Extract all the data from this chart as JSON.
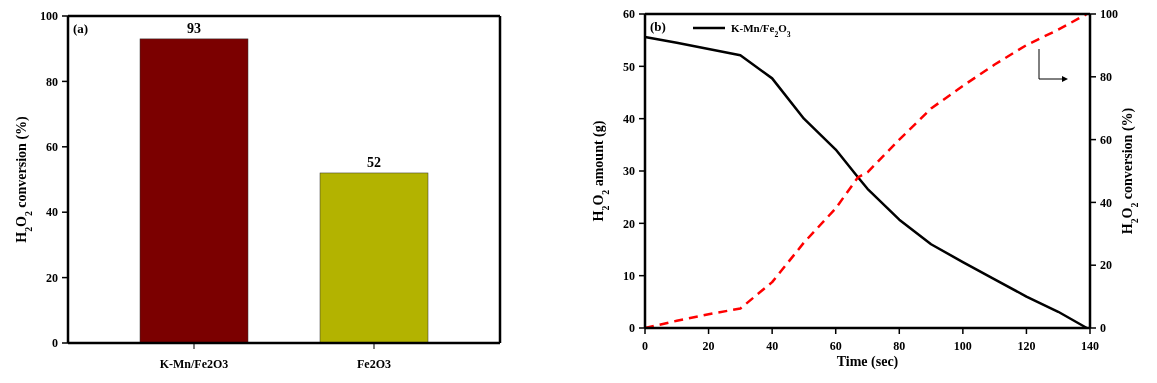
{
  "chart_data": [
    {
      "type": "bar",
      "categories": [
        "K-Mn/Fe2O3",
        "Fe2O3"
      ],
      "values": [
        93,
        52
      ],
      "colors": [
        "#7b0000",
        "#b3b300"
      ],
      "ylabel": "H$_{2}$O$_{2}$ conversion (%)",
      "ylim": [
        0,
        100
      ],
      "yticks": [
        0,
        20,
        40,
        60,
        80,
        100
      ],
      "data_labels": true,
      "annotations": [
        "(a)"
      ],
      "grid": false
    },
    {
      "type": "line",
      "xlabel": "Time (sec)",
      "ylabel": "H$_{2}$O$_{2}$ amount (g)",
      "y2label": "H$_{2}$O$_{2}$ conversion (%)",
      "xlim": [
        0,
        140
      ],
      "xticks": [
        0,
        20,
        40,
        60,
        80,
        100,
        120,
        140
      ],
      "ylim": [
        0,
        60
      ],
      "yticks": [
        0,
        10,
        20,
        30,
        40,
        50,
        60
      ],
      "y2lim": [
        0,
        100
      ],
      "y2ticks": [
        0,
        20,
        40,
        60,
        80,
        100
      ],
      "annotations": [
        "(b)"
      ],
      "legend": "top left",
      "grid": false,
      "series": [
        {
          "name": "K-Mn/Fe$_{2}$O$_{3}$",
          "color": "#000000",
          "line_style": "solid",
          "x": [
            0,
            10,
            30,
            40,
            50,
            60,
            67,
            70,
            80,
            90,
            100,
            110,
            120,
            130,
            139
          ],
          "values": [
            55.6,
            54.5,
            52.1,
            47.7,
            40.0,
            34.1,
            28.8,
            26.6,
            20.7,
            16.0,
            12.6,
            9.3,
            6.0,
            3.1,
            0
          ]
        },
        {
          "color": "#ff0000",
          "line_style": "dashed",
          "axis": "y2",
          "x": [
            0,
            10,
            20,
            30,
            40,
            50,
            60,
            67,
            70,
            80,
            90,
            100,
            110,
            120,
            130,
            139
          ],
          "values": [
            0,
            2.3,
            4.4,
            6.2,
            14.6,
            27.2,
            38.1,
            48,
            49.6,
            60,
            69.9,
            77.1,
            83.9,
            90.1,
            95,
            100
          ]
        }
      ]
    }
  ]
}
